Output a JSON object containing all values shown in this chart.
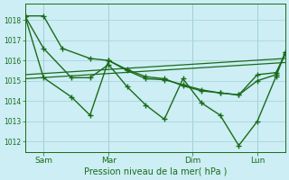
{
  "xlabel": "Pression niveau de la mer( hPa )",
  "bg_color": "#cceef4",
  "grid_color": "#aad4dc",
  "line_color": "#1a6b1a",
  "ylim": [
    1011.5,
    1018.8
  ],
  "yticks": [
    1012,
    1013,
    1014,
    1015,
    1016,
    1017,
    1018
  ],
  "xtick_labels": [
    "Sam",
    "Mar",
    "Dim",
    "Lun"
  ],
  "xtick_positions": [
    8,
    36,
    72,
    100
  ],
  "xlim": [
    0,
    112
  ],
  "series": [
    {
      "x": [
        0,
        8,
        16,
        28,
        36,
        44,
        52,
        60,
        68,
        76,
        84,
        92,
        100,
        108,
        112
      ],
      "y": [
        1018.2,
        1018.2,
        1016.6,
        1016.1,
        1016.0,
        1015.55,
        1015.2,
        1015.1,
        1014.75,
        1014.5,
        1014.4,
        1014.3,
        1015.3,
        1015.4,
        1016.3
      ],
      "marker": "+",
      "ms": 4,
      "lw": 1.0
    },
    {
      "x": [
        0,
        8,
        20,
        28,
        36,
        44,
        52,
        60,
        68,
        76,
        84,
        92,
        100,
        108,
        112
      ],
      "y": [
        1018.2,
        1015.15,
        1014.2,
        1013.3,
        1016.0,
        1015.5,
        1015.1,
        1015.05,
        1014.8,
        1014.55,
        1014.4,
        1014.3,
        1015.0,
        1015.3,
        1016.4
      ],
      "marker": "+",
      "ms": 4,
      "lw": 1.0
    },
    {
      "x": [
        0,
        8,
        20,
        28,
        36,
        44,
        52,
        60,
        68,
        76,
        84,
        92,
        100,
        108,
        112
      ],
      "y": [
        1018.2,
        1016.6,
        1015.15,
        1015.15,
        1015.8,
        1014.7,
        1013.8,
        1013.1,
        1015.1,
        1013.9,
        1013.3,
        1011.8,
        1013.0,
        1015.2,
        1016.4
      ],
      "marker": "+",
      "ms": 4,
      "lw": 1.0
    },
    {
      "x": [
        0,
        112
      ],
      "y": [
        1015.3,
        1016.1
      ],
      "marker": "none",
      "ms": 0,
      "lw": 0.9,
      "linestyle": "-"
    },
    {
      "x": [
        0,
        112
      ],
      "y": [
        1015.1,
        1015.9
      ],
      "marker": "none",
      "ms": 0,
      "lw": 0.9,
      "linestyle": "-"
    }
  ]
}
